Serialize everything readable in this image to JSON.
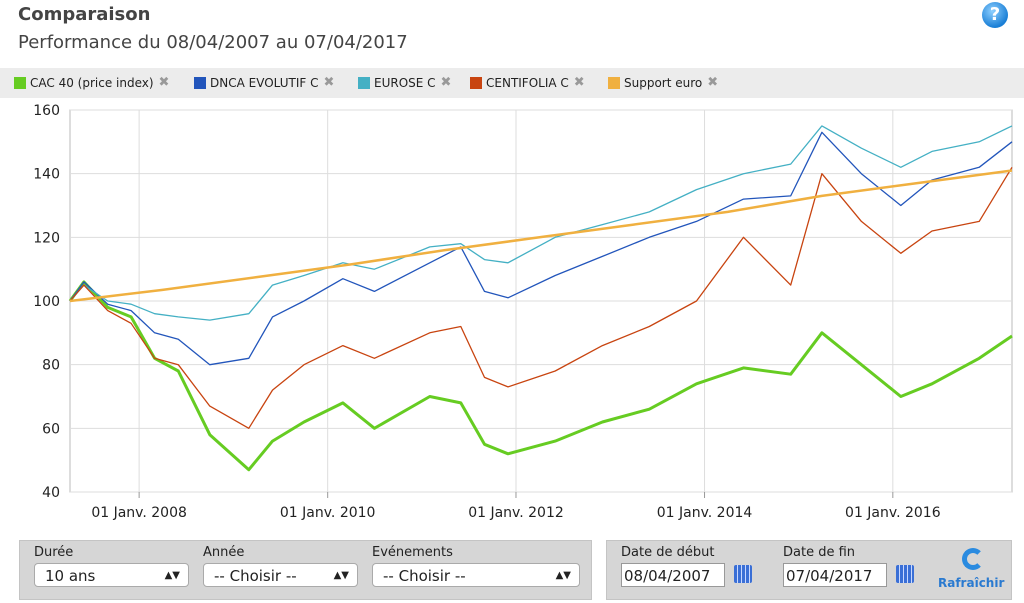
{
  "header": {
    "title": "Comparaison",
    "subtitle": "Performance du 08/04/2007 au 07/04/2017",
    "help_glyph": "?"
  },
  "legend": [
    {
      "name": "CAC 40 (price index)",
      "color": "#66cc22"
    },
    {
      "name": "DNCA EVOLUTIF C",
      "color": "#2255bb"
    },
    {
      "name": "EUROSE C",
      "color": "#44b0c4"
    },
    {
      "name": "CENTIFOLIA C",
      "color": "#c84410"
    },
    {
      "name": "Support euro",
      "color": "#f0b040"
    }
  ],
  "remove_glyph": "✖",
  "chart_data": {
    "type": "line",
    "title": "",
    "xlabel": "",
    "ylabel": "",
    "ylim": [
      40,
      160
    ],
    "yticks": [
      40,
      60,
      80,
      100,
      120,
      140,
      160
    ],
    "xlim": [
      "2007-04-08",
      "2017-04-07"
    ],
    "xticks": [
      "2008-01-01",
      "2010-01-01",
      "2012-01-01",
      "2014-01-01",
      "2016-01-01"
    ],
    "xtick_labels": [
      "01 Janv. 2008",
      "01 Janv. 2010",
      "01 Janv. 2012",
      "01 Janv. 2014",
      "01 Janv. 2016"
    ],
    "grid": true,
    "series": [
      {
        "name": "CAC 40 (price index)",
        "color": "#66cc22",
        "x": [
          "2007-04-08",
          "2007-06-01",
          "2007-09-01",
          "2007-12-01",
          "2008-03-01",
          "2008-06-01",
          "2008-10-01",
          "2009-03-01",
          "2009-06-01",
          "2009-10-01",
          "2010-03-01",
          "2010-07-01",
          "2011-02-01",
          "2011-06-01",
          "2011-09-01",
          "2011-12-01",
          "2012-06-01",
          "2012-12-01",
          "2013-06-01",
          "2013-12-01",
          "2014-06-01",
          "2014-12-01",
          "2015-04-01",
          "2015-09-01",
          "2016-02-01",
          "2016-06-01",
          "2016-12-01",
          "2017-04-07"
        ],
        "values": [
          100,
          106,
          98,
          95,
          82,
          78,
          58,
          47,
          56,
          62,
          68,
          60,
          70,
          68,
          55,
          52,
          56,
          62,
          66,
          74,
          79,
          77,
          90,
          80,
          70,
          74,
          82,
          89
        ]
      },
      {
        "name": "DNCA EVOLUTIF C",
        "color": "#2255bb",
        "x": [
          "2007-04-08",
          "2007-06-01",
          "2007-09-01",
          "2007-12-01",
          "2008-03-01",
          "2008-06-01",
          "2008-10-01",
          "2009-03-01",
          "2009-06-01",
          "2009-10-01",
          "2010-03-01",
          "2010-07-01",
          "2011-02-01",
          "2011-06-01",
          "2011-09-01",
          "2011-12-01",
          "2012-06-01",
          "2012-12-01",
          "2013-06-01",
          "2013-12-01",
          "2014-06-01",
          "2014-12-01",
          "2015-04-01",
          "2015-09-01",
          "2016-02-01",
          "2016-06-01",
          "2016-12-01",
          "2017-04-07"
        ],
        "values": [
          100,
          106,
          99,
          97,
          90,
          88,
          80,
          82,
          95,
          100,
          107,
          103,
          112,
          117,
          103,
          101,
          108,
          114,
          120,
          125,
          132,
          133,
          153,
          140,
          130,
          138,
          142,
          150
        ]
      },
      {
        "name": "EUROSE C",
        "color": "#44b0c4",
        "x": [
          "2007-04-08",
          "2007-06-01",
          "2007-09-01",
          "2007-12-01",
          "2008-03-01",
          "2008-06-01",
          "2008-10-01",
          "2009-03-01",
          "2009-06-01",
          "2009-10-01",
          "2010-03-01",
          "2010-07-01",
          "2011-02-01",
          "2011-06-01",
          "2011-09-01",
          "2011-12-01",
          "2012-06-01",
          "2012-12-01",
          "2013-06-01",
          "2013-12-01",
          "2014-06-01",
          "2014-12-01",
          "2015-04-01",
          "2015-09-01",
          "2016-02-01",
          "2016-06-01",
          "2016-12-01",
          "2017-04-07"
        ],
        "values": [
          100,
          105,
          100,
          99,
          96,
          95,
          94,
          96,
          105,
          108,
          112,
          110,
          117,
          118,
          113,
          112,
          120,
          124,
          128,
          135,
          140,
          143,
          155,
          148,
          142,
          147,
          150,
          155
        ]
      },
      {
        "name": "CENTIFOLIA C",
        "color": "#c84410",
        "x": [
          "2007-04-08",
          "2007-06-01",
          "2007-09-01",
          "2007-12-01",
          "2008-03-01",
          "2008-06-01",
          "2008-10-01",
          "2009-03-01",
          "2009-06-01",
          "2009-10-01",
          "2010-03-01",
          "2010-07-01",
          "2011-02-01",
          "2011-06-01",
          "2011-09-01",
          "2011-12-01",
          "2012-06-01",
          "2012-12-01",
          "2013-06-01",
          "2013-12-01",
          "2014-06-01",
          "2014-12-01",
          "2015-04-01",
          "2015-09-01",
          "2016-02-01",
          "2016-06-01",
          "2016-12-01",
          "2017-04-07"
        ],
        "values": [
          100,
          105,
          97,
          93,
          82,
          80,
          67,
          60,
          72,
          80,
          86,
          82,
          90,
          92,
          76,
          73,
          78,
          86,
          92,
          100,
          120,
          105,
          140,
          125,
          115,
          122,
          125,
          142
        ]
      },
      {
        "name": "Support euro",
        "color": "#f0b040",
        "x": [
          "2007-04-08",
          "2008-04-01",
          "2009-04-01",
          "2010-04-01",
          "2011-04-01",
          "2012-04-01",
          "2013-04-01",
          "2014-04-01",
          "2015-04-01",
          "2016-04-01",
          "2017-04-07"
        ],
        "values": [
          100,
          103.5,
          107.5,
          111.5,
          116,
          120,
          124,
          128,
          133,
          137,
          141
        ]
      }
    ]
  },
  "controls": {
    "duree": {
      "label": "Durée",
      "value": "10 ans"
    },
    "annee": {
      "label": "Année",
      "value": "-- Choisir --"
    },
    "evenements": {
      "label": "Evénements",
      "value": "-- Choisir --"
    },
    "date_debut": {
      "label": "Date de début",
      "value": "08/04/2007"
    },
    "date_fin": {
      "label": "Date de fin",
      "value": "07/04/2017"
    },
    "refresh_label": "Rafraîchir",
    "select_arrow": "▲▼"
  }
}
